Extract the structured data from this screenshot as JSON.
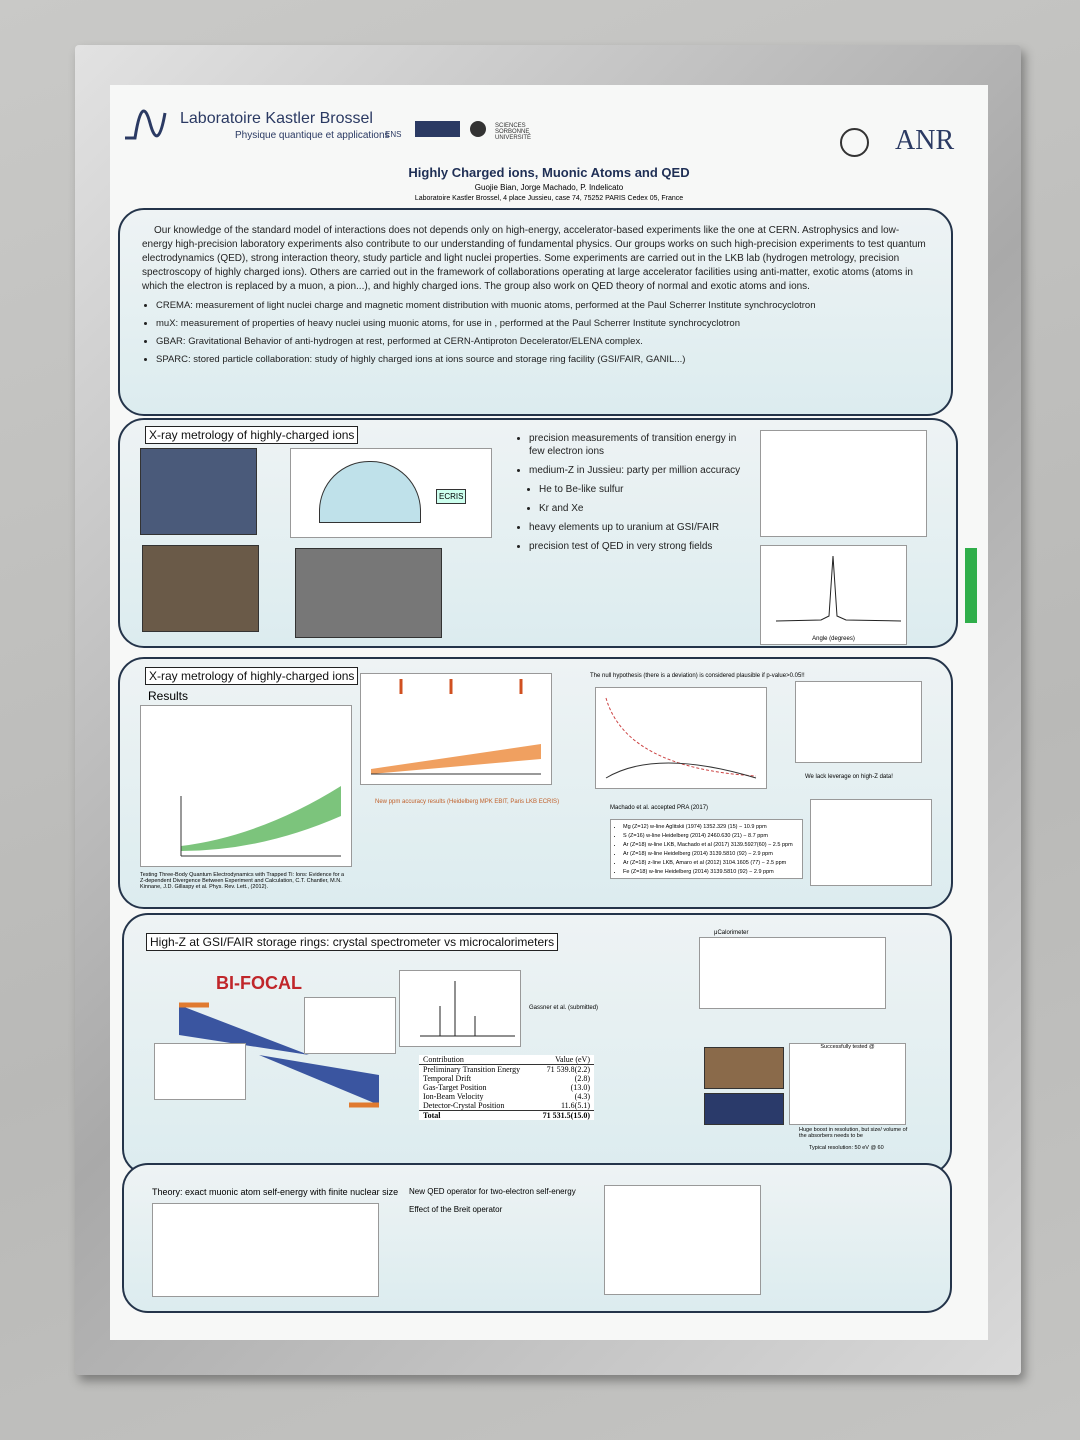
{
  "header": {
    "lab_name": "Laboratoire Kastler Brossel",
    "lab_subtitle": "Physique quantique et applications",
    "partner_logos": [
      "ENS",
      "SCIENCES SORBONNE UNIVERSITÉ"
    ],
    "funder": "ANR",
    "title": "Highly Charged ions, Muonic Atoms and QED",
    "authors": "Guojie Bian, Jorge Machado, P. Indelicato",
    "address": "Laboratoire Kastler Brossel, 4 place Jussieu, case 74, 75252 PARIS Cedex 05, France"
  },
  "intro": {
    "paragraph": "Our knowledge of the standard model of interactions does not depends only on high-energy, accelerator-based experiments like the one at CERN. Astrophysics and low-energy high-precision laboratory experiments also contribute to our understanding of fundamental physics. Our groups works on such high-precision experiments to test quantum electrodynamics (QED), strong interaction theory, study particle and light nuclei properties. Some experiments are carried out in the LKB lab (hydrogen metrology, precision spectroscopy of highly charged ions). Others are carried out in the framework of collaborations operating at large accelerator facilities using anti-matter, exotic atoms (atoms in which the electron is replaced by a muon, a pion...), and highly charged ions. The group also work on QED theory of normal and exotic atoms and ions.",
    "bullets": [
      "CREMA: measurement of light nuclei charge and magnetic moment distribution with muonic atoms, performed at the Paul Scherrer Institute synchrocyclotron",
      "muX: measurement of properties of heavy nuclei using muonic atoms, for use in , performed at the Paul Scherrer Institute synchrocyclotron",
      "GBAR: Gravitational  Behavior of anti-hydrogen at rest, performed at CERN-Antiproton Decelerator/ELENA complex.",
      "SPARC: stored particle collaboration: study of highly charged ions at ions source and storage ring facility (GSI/FAIR, GANIL...)"
    ]
  },
  "section1": {
    "title": "X-ray metrology of highly-charged ions",
    "bullets": [
      "precision measurements of transition energy in few electron ions",
      "medium-Z in Jussieu: party per million accuracy",
      "He to Be-like sulfur",
      "Kr and Xe",
      "heavy elements up to uranium at GSI/FAIR",
      "precision test of QED in very strong fields"
    ],
    "figure_labels": [
      "ECRIS",
      "Angle (degrees)"
    ]
  },
  "section2": {
    "title": "X-ray metrology of highly-charged ions",
    "subtitle": "Results",
    "plot_caption": "New ppm accuracy results (Heidelberg MPK EBIT, Paris LKB ECRIS)",
    "null_hypothesis": "The null hypothesis (there is a deviation) is considered plausible if p-value>0.05!!",
    "citation": "Machado et al. accepted PRA (2017)",
    "leverage_note": "We lack leverage on high-Z data!",
    "reference": "Testing Three-Body Quantum Electrodynamics with Trapped Ti: Ions: Evidence for a Z-dependent Divergence Between Experiment and Calculation, C.T. Chantler, M.N. Kinnane, J.D. Gillaspy et al. Phys. Rev. Lett., (2012).",
    "results": [
      "Mg (Z=12) w-line Aglitskii (1974) 1352.329 (15) − 10.9 ppm",
      "S (Z=16) w-line Heidelberg (2014) 2460.630 (21) − 8.7 ppm",
      "Ar (Z=18) w-line LKB, Machado et al (2017) 3139.5927(60) − 2.5 ppm",
      "Ar (Z=18) w-line Heidelberg (2014) 3139.5810 (92) − 2.9 ppm",
      "Ar (Z=18) z-line LKB, Amaro et al (2012) 3104.1605 (77) − 2.5 ppm",
      "Fe (Z=18) w-line Heidelberg (2014) 3139.5810 (92) − 2.9 ppm"
    ]
  },
  "section3": {
    "title": "High-Z at GSI/FAIR storage rings: crystal spectrometer vs microcalorimeters",
    "logo": "BI-FOCAL",
    "citation": "Gassner et al. (submitted)",
    "table": {
      "header": [
        "Contribution",
        "Value (eV)"
      ],
      "rows": [
        [
          "Preliminary Transition Energy",
          "71 539.8(2.2)"
        ],
        [
          "Temporal Drift",
          "(2.8)"
        ],
        [
          "Gas-Target Position",
          "(13.0)"
        ],
        [
          "Ion-Beam Velocity",
          "(4.3)"
        ],
        [
          "Detector-Crystal Position",
          "11.6(5.1)"
        ],
        [
          "Total",
          "71 531.5(15.0)"
        ]
      ]
    },
    "calorimeter_label": "μCalorimeter",
    "tested": "Successfully tested @",
    "boost_note": "Huge boost in resolution, but size/ volume of the absorbers needs to be",
    "resolution": "Typical resolution: 50 eV @ 60"
  },
  "section4": {
    "title": "Theory: exact muonic atom self-energy with finite nuclear size",
    "operator": "New QED operator for two-electron self-energy",
    "breit": "Effect of the Breit operator"
  }
}
